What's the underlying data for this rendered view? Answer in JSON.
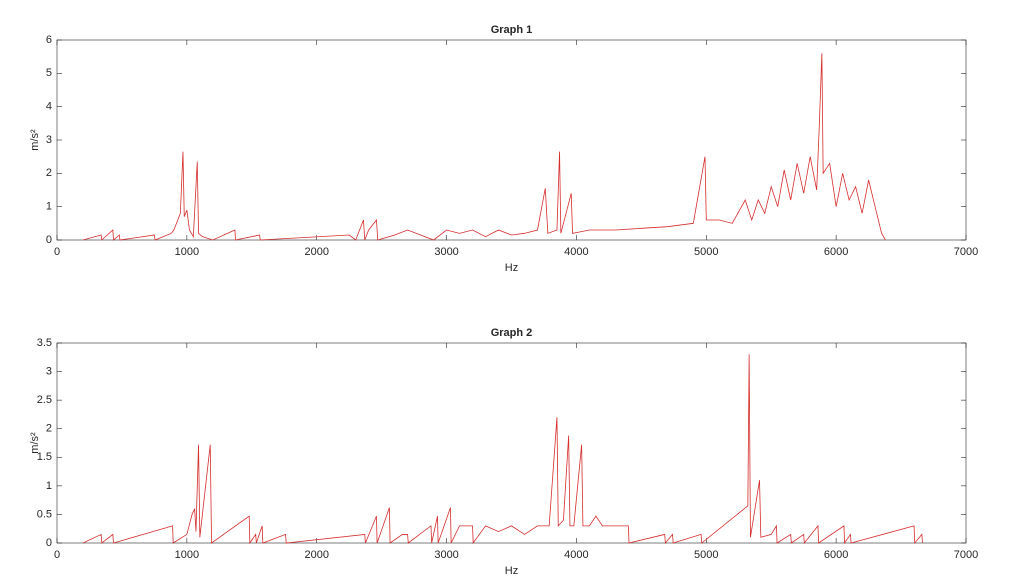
{
  "chart_data": [
    {
      "type": "line",
      "title": "Graph 1",
      "ylabel": "m/s²",
      "xlabel": "Hz",
      "xlim": [
        0,
        7000
      ],
      "xticks": [
        0,
        1000,
        2000,
        3000,
        4000,
        5000,
        6000,
        7000
      ],
      "ylim": [
        0,
        6
      ],
      "yticks": [
        0,
        1,
        2,
        3,
        4,
        5,
        6
      ],
      "grid": false,
      "series": [
        {
          "color": "#d62d2d",
          "x": [
            200,
            340,
            345,
            430,
            435,
            480,
            485,
            750,
            755,
            880,
            900,
            930,
            950,
            970,
            980,
            1000,
            1020,
            1050,
            1080,
            1090,
            1120,
            1200,
            1370,
            1375,
            1560,
            1565,
            2250,
            2300,
            2360,
            2370,
            2400,
            2460,
            2470,
            2600,
            2700,
            2800,
            2900,
            3000,
            3100,
            3200,
            3300,
            3400,
            3500,
            3600,
            3700,
            3760,
            3780,
            3850,
            3870,
            3880,
            3960,
            3970,
            4100,
            4300,
            4500,
            4700,
            4900,
            4990,
            5000,
            5100,
            5200,
            5300,
            5350,
            5400,
            5450,
            5500,
            5550,
            5600,
            5650,
            5700,
            5750,
            5800,
            5850,
            5870,
            5890,
            5900,
            5950,
            6000,
            6050,
            6100,
            6150,
            6200,
            6250,
            6300,
            6350,
            6380
          ],
          "values": [
            0,
            0.15,
            0,
            0.3,
            0,
            0.15,
            0,
            0.15,
            0,
            0.2,
            0.3,
            0.6,
            0.8,
            2.65,
            0.7,
            0.9,
            0.3,
            0.1,
            2.35,
            0.2,
            0.1,
            0,
            0.3,
            0,
            0.15,
            0,
            0.15,
            0,
            0.6,
            0,
            0.3,
            0.6,
            0,
            0.15,
            0.3,
            0.15,
            0,
            0.3,
            0.2,
            0.3,
            0.1,
            0.3,
            0.15,
            0.2,
            0.3,
            1.55,
            0.2,
            0.3,
            2.65,
            0.2,
            1.4,
            0.2,
            0.3,
            0.3,
            0.35,
            0.4,
            0.5,
            2.5,
            0.6,
            0.6,
            0.5,
            1.2,
            0.6,
            1.2,
            0.8,
            1.6,
            1.0,
            2.1,
            1.2,
            2.3,
            1.4,
            2.5,
            1.5,
            3.4,
            5.6,
            2.0,
            2.3,
            1.0,
            2.0,
            1.2,
            1.6,
            0.8,
            1.8,
            1.0,
            0.2,
            0
          ]
        }
      ]
    },
    {
      "type": "line",
      "title": "Graph 2",
      "ylabel": "m/s²",
      "xlabel": "Hz",
      "xlim": [
        0,
        7000
      ],
      "xticks": [
        0,
        1000,
        2000,
        3000,
        4000,
        5000,
        6000,
        7000
      ],
      "ylim": [
        0,
        3.5
      ],
      "yticks": [
        0,
        0.5,
        1,
        1.5,
        2,
        2.5,
        3,
        3.5
      ],
      "grid": false,
      "series": [
        {
          "color": "#d62d2d",
          "x": [
            200,
            340,
            345,
            430,
            435,
            890,
            895,
            1000,
            1040,
            1060,
            1070,
            1090,
            1100,
            1180,
            1190,
            1480,
            1485,
            1530,
            1535,
            1580,
            1585,
            1760,
            1765,
            2370,
            2375,
            2460,
            2465,
            2560,
            2565,
            2660,
            2700,
            2705,
            2880,
            2885,
            2930,
            2935,
            3030,
            3035,
            3100,
            3200,
            3205,
            3300,
            3400,
            3500,
            3600,
            3700,
            3790,
            3850,
            3860,
            3900,
            3940,
            3950,
            3980,
            4040,
            4050,
            4100,
            4150,
            4200,
            4300,
            4400,
            4405,
            4680,
            4685,
            4740,
            4745,
            4960,
            4965,
            5320,
            5330,
            5340,
            5410,
            5420,
            5500,
            5540,
            5545,
            5650,
            5655,
            5750,
            5755,
            5860,
            5865,
            6060,
            6065,
            6110,
            6115,
            6600,
            6605,
            6660,
            6665
          ],
          "values": [
            0,
            0.15,
            0,
            0.15,
            0,
            0.3,
            0,
            0.15,
            0.5,
            0.6,
            0.2,
            1.72,
            0.1,
            1.72,
            0,
            0.47,
            0,
            0.15,
            0,
            0.3,
            0,
            0.15,
            0,
            0.15,
            0,
            0.47,
            0,
            0.62,
            0,
            0.15,
            0.15,
            0,
            0.3,
            0,
            0.47,
            0,
            0.62,
            0,
            0.3,
            0.3,
            0,
            0.3,
            0.2,
            0.3,
            0.15,
            0.3,
            0.3,
            2.2,
            0.3,
            0.4,
            1.88,
            0.3,
            0.3,
            1.72,
            0.3,
            0.3,
            0.47,
            0.3,
            0.3,
            0.3,
            0,
            0.15,
            0,
            0.15,
            0,
            0.15,
            0,
            0.65,
            3.3,
            0.1,
            1.1,
            0.1,
            0.15,
            0.3,
            0,
            0.15,
            0,
            0.15,
            0,
            0.3,
            0,
            0.3,
            0,
            0.15,
            0,
            0.3,
            0,
            0.15,
            0
          ]
        }
      ]
    }
  ]
}
